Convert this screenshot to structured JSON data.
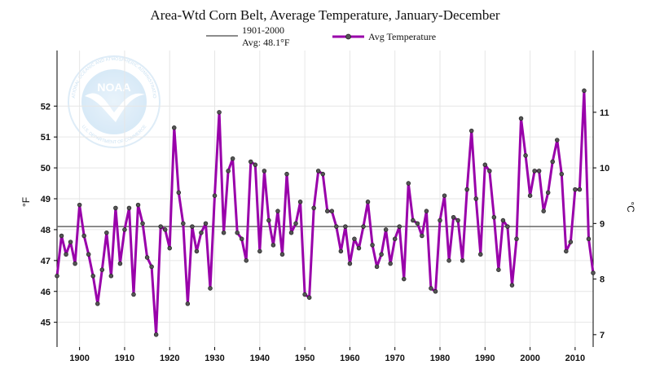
{
  "chart_data": {
    "type": "line",
    "title": "Area-Wtd Corn Belt, Average Temperature, January-December",
    "ylabel_left": "°F",
    "ylabel_right": "°C",
    "xlim": [
      1895,
      2014
    ],
    "ylim": [
      44.2,
      53.8
    ],
    "ylim_right_c": [
      6.8,
      12.1
    ],
    "x_ticks": [
      1900,
      1910,
      1920,
      1930,
      1940,
      1950,
      1960,
      1970,
      1980,
      1990,
      2000,
      2010
    ],
    "y_ticks_left": [
      45,
      46,
      47,
      48,
      49,
      50,
      51,
      52
    ],
    "y_ticks_right_c": [
      7,
      8,
      9,
      10,
      11
    ],
    "grid": true,
    "legend_position": "top-center",
    "legend": {
      "baseline_label_1": "1901-2000",
      "baseline_label_2": "Avg: 48.1°F",
      "series_label": "Avg Temperature"
    },
    "baseline": {
      "name": "1901-2000 Avg",
      "value": 48.1,
      "color": "#666666"
    },
    "series": [
      {
        "name": "Avg Temperature",
        "color": "#9900aa",
        "x": [
          1895,
          1896,
          1897,
          1898,
          1899,
          1900,
          1901,
          1902,
          1903,
          1904,
          1905,
          1906,
          1907,
          1908,
          1909,
          1910,
          1911,
          1912,
          1913,
          1914,
          1915,
          1916,
          1917,
          1918,
          1919,
          1920,
          1921,
          1922,
          1923,
          1924,
          1925,
          1926,
          1927,
          1928,
          1929,
          1930,
          1931,
          1932,
          1933,
          1934,
          1935,
          1936,
          1937,
          1938,
          1939,
          1940,
          1941,
          1942,
          1943,
          1944,
          1945,
          1946,
          1947,
          1948,
          1949,
          1950,
          1951,
          1952,
          1953,
          1954,
          1955,
          1956,
          1957,
          1958,
          1959,
          1960,
          1961,
          1962,
          1963,
          1964,
          1965,
          1966,
          1967,
          1968,
          1969,
          1970,
          1971,
          1972,
          1973,
          1974,
          1975,
          1976,
          1977,
          1978,
          1979,
          1980,
          1981,
          1982,
          1983,
          1984,
          1985,
          1986,
          1987,
          1988,
          1989,
          1990,
          1991,
          1992,
          1993,
          1994,
          1995,
          1996,
          1997,
          1998,
          1999,
          2000,
          2001,
          2002,
          2003,
          2004,
          2005,
          2006,
          2007,
          2008,
          2009,
          2010,
          2011,
          2012,
          2013,
          2014
        ],
        "values": [
          46.5,
          47.8,
          47.2,
          47.6,
          46.9,
          48.8,
          47.8,
          47.2,
          46.5,
          45.6,
          46.7,
          47.9,
          46.5,
          48.7,
          46.9,
          48.0,
          48.7,
          45.9,
          48.8,
          48.2,
          47.1,
          46.8,
          44.6,
          48.1,
          48.0,
          47.4,
          51.3,
          49.2,
          48.2,
          45.6,
          48.1,
          47.3,
          47.9,
          48.2,
          46.1,
          49.1,
          51.8,
          47.9,
          49.9,
          50.3,
          47.9,
          47.7,
          47.0,
          50.2,
          50.1,
          47.3,
          49.9,
          48.3,
          47.5,
          48.6,
          47.2,
          49.8,
          47.9,
          48.2,
          48.9,
          45.9,
          45.8,
          48.7,
          49.9,
          49.8,
          48.6,
          48.6,
          48.1,
          47.3,
          48.1,
          46.9,
          47.7,
          47.4,
          48.1,
          48.9,
          47.5,
          46.8,
          47.2,
          48.0,
          46.9,
          47.7,
          48.1,
          46.4,
          49.5,
          48.3,
          48.2,
          47.8,
          48.6,
          46.1,
          46.0,
          48.3,
          49.1,
          47.0,
          48.4,
          48.3,
          47.0,
          49.3,
          51.2,
          49.0,
          47.2,
          50.1,
          49.9,
          48.4,
          46.7,
          48.3,
          48.1,
          46.2,
          47.7,
          51.6,
          50.4,
          49.1,
          49.9,
          49.9,
          48.6,
          49.2,
          50.2,
          50.9,
          49.8,
          47.3,
          47.6,
          49.3,
          49.3,
          52.5,
          47.7,
          46.6
        ]
      }
    ]
  },
  "logo": {
    "text_center": "NOAA",
    "ring_text": "NATIONAL OCEANIC AND ATMOSPHERIC ADMINISTRATION",
    "ring_text_bottom": "U.S. DEPARTMENT OF COMMERCE"
  }
}
